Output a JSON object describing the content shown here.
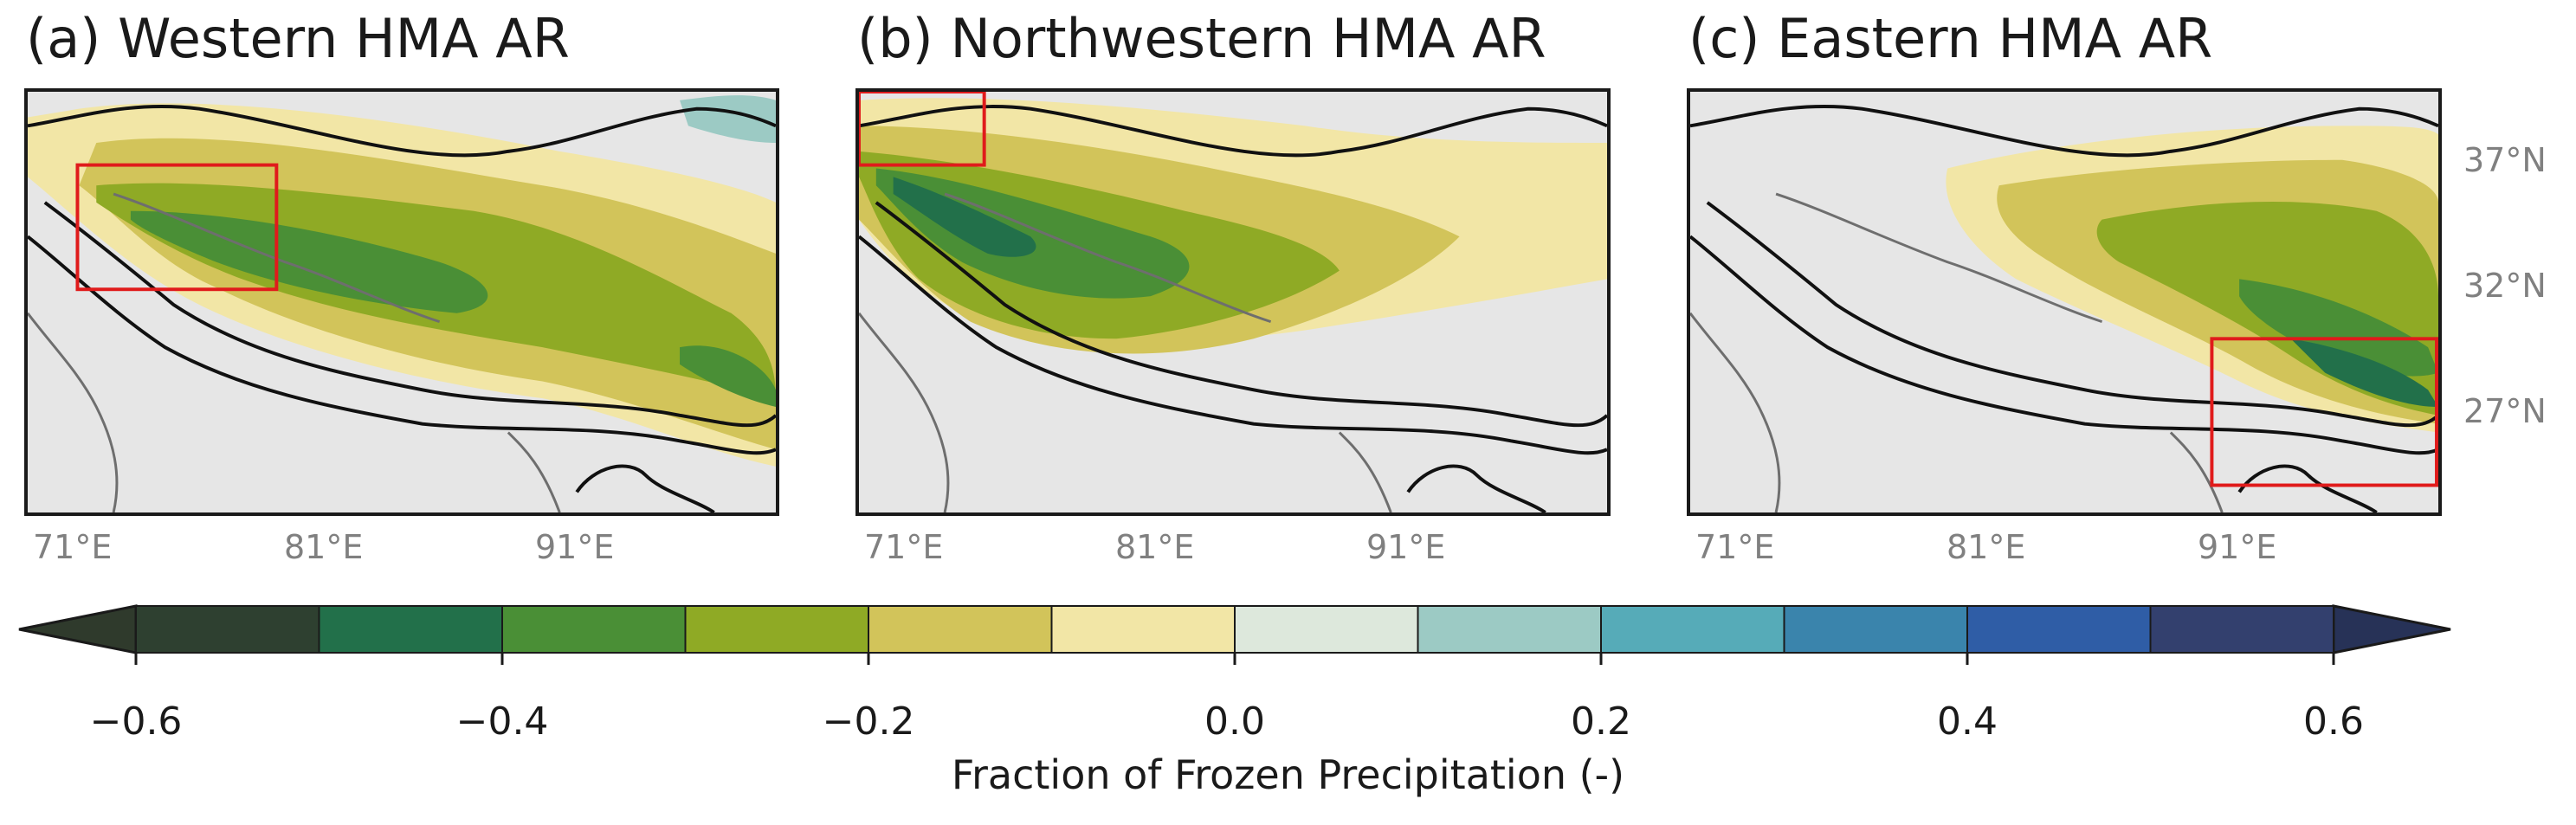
{
  "panels": [
    {
      "title": "(a) Western HMA AR",
      "highlight_region": "western"
    },
    {
      "title": "(b) Northwestern HMA AR",
      "highlight_region": "northwestern"
    },
    {
      "title": "(c) Eastern HMA AR",
      "highlight_region": "eastern"
    }
  ],
  "lon_ticks": [
    "71°E",
    "81°E",
    "91°E"
  ],
  "lat_ticks": [
    "37°N",
    "32°N",
    "27°N"
  ],
  "colorbar": {
    "label": "Fraction of Frozen Precipitation (-)",
    "ticks": [
      "−0.6",
      "−0.4",
      "−0.2",
      "0.0",
      "0.2",
      "0.4",
      "0.6"
    ],
    "min": -0.6,
    "max": 0.6,
    "step": 0.1,
    "extend": "both",
    "colors": [
      "#2e4030",
      "#22704a",
      "#4a8f36",
      "#8faa25",
      "#d2c45a",
      "#f2e6a6",
      "#dde8dc",
      "#9ccac4",
      "#56abb8",
      "#3a84ac",
      "#2f5da6",
      "#33406e"
    ],
    "under_color": "#2f3a2c",
    "over_color": "#273257"
  },
  "colors": {
    "highlight_box": "#e01b1b",
    "contour": "#111111",
    "border": "#6e6e6e",
    "no_data": "#e6e6e6"
  }
}
